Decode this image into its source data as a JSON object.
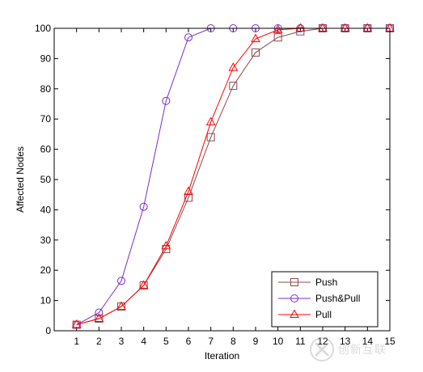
{
  "chart_data": {
    "type": "line",
    "title": "",
    "xlabel": "Iteration",
    "ylabel": "Affected Nodes",
    "xlim": [
      0,
      15
    ],
    "ylim": [
      0,
      100
    ],
    "x": [
      1,
      2,
      3,
      4,
      5,
      6,
      7,
      8,
      9,
      10,
      11,
      12,
      13,
      14,
      15
    ],
    "x_ticks": [
      1,
      2,
      3,
      4,
      5,
      6,
      7,
      8,
      9,
      10,
      11,
      12,
      13,
      14,
      15
    ],
    "y_ticks": [
      0,
      10,
      20,
      30,
      40,
      50,
      60,
      70,
      80,
      90,
      100
    ],
    "grid": false,
    "legend_position": "bottom-right",
    "series": [
      {
        "name": "Push",
        "color": "#8b4a4a",
        "marker": "square",
        "values": [
          2,
          4,
          8,
          15,
          27,
          44,
          64,
          81,
          92,
          97,
          99,
          100,
          100,
          100,
          100
        ]
      },
      {
        "name": "Push&Pull",
        "color": "#7a2ccc",
        "marker": "circle",
        "values": [
          2,
          6,
          16.5,
          41,
          76,
          97,
          100,
          100,
          100,
          100,
          100,
          100,
          100,
          100,
          100
        ]
      },
      {
        "name": "Pull",
        "color": "#ff0000",
        "marker": "triangle",
        "values": [
          2,
          4,
          8,
          15,
          28,
          46,
          69,
          87,
          96.5,
          99.5,
          100,
          100,
          100,
          100,
          100
        ]
      }
    ]
  },
  "watermark": {
    "text": "创新互联",
    "icon": "x-logo-icon"
  }
}
